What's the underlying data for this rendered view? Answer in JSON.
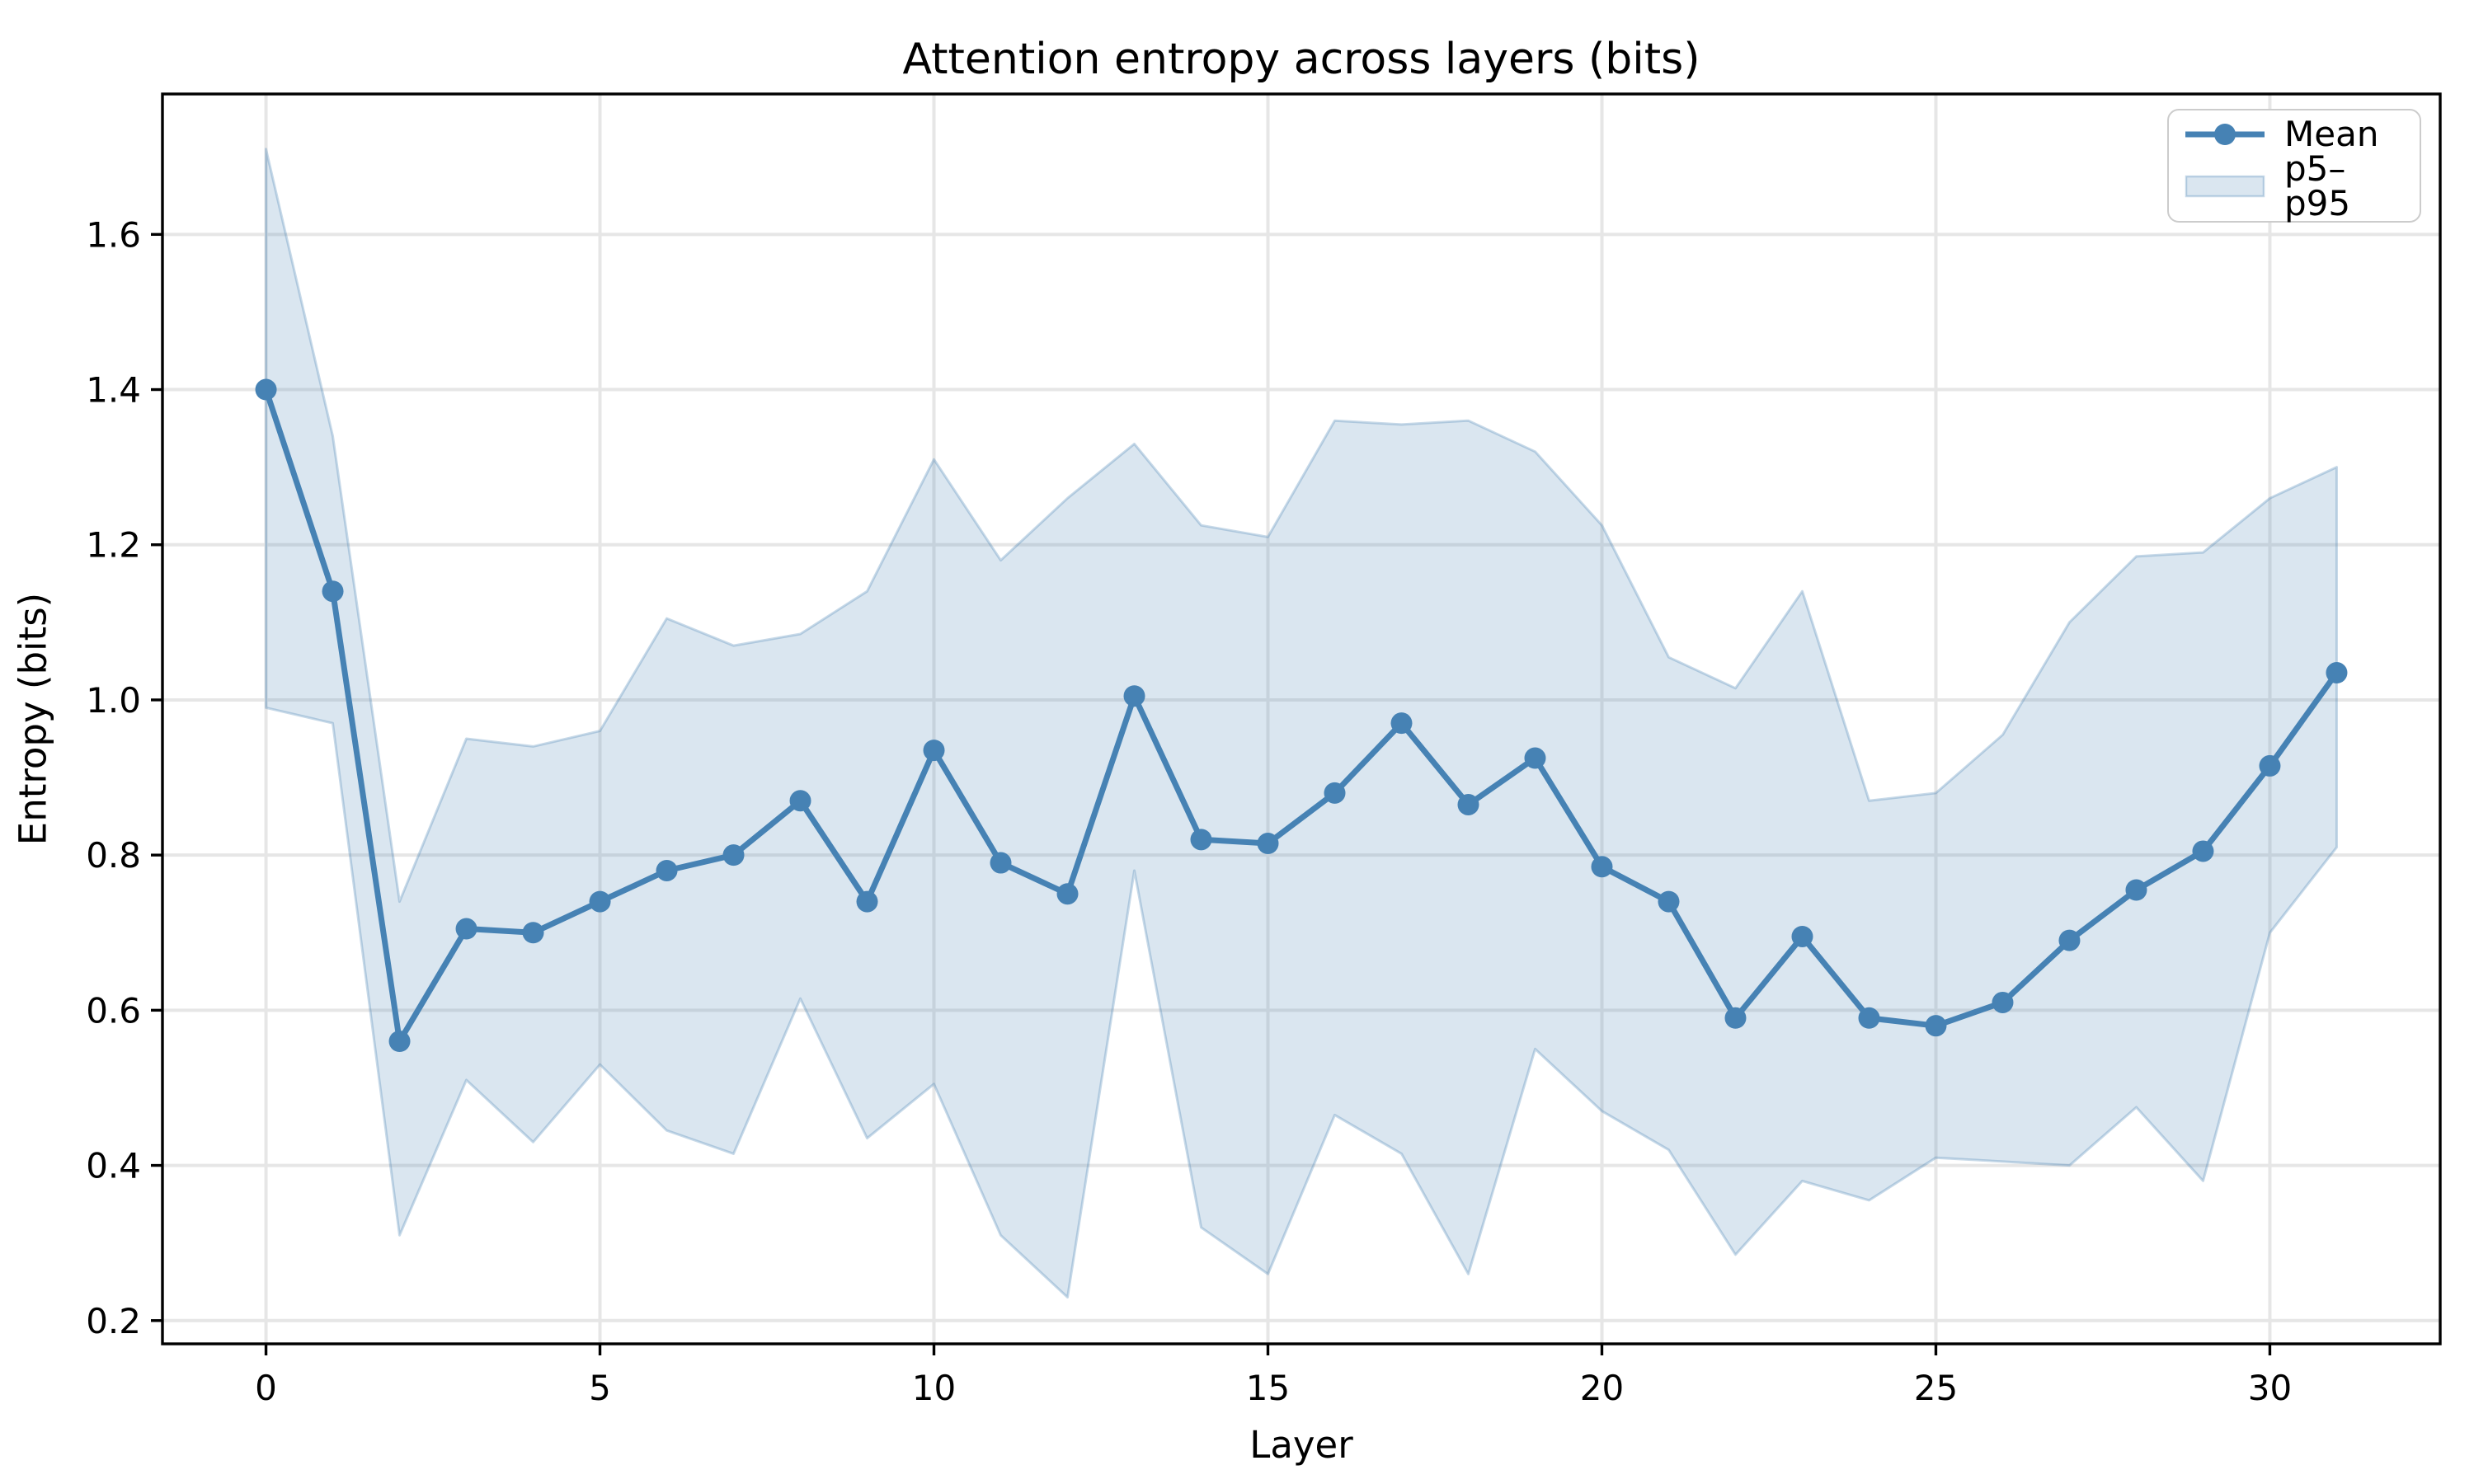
{
  "chart_data": {
    "type": "line",
    "title": "Attention entropy across layers (bits)",
    "xlabel": "Layer",
    "ylabel": "Entropy (bits)",
    "x": [
      0,
      1,
      2,
      3,
      4,
      5,
      6,
      7,
      8,
      9,
      10,
      11,
      12,
      13,
      14,
      15,
      16,
      17,
      18,
      19,
      20,
      21,
      22,
      23,
      24,
      25,
      26,
      27,
      28,
      29,
      30,
      31
    ],
    "series": [
      {
        "name": "Mean",
        "values": [
          1.4,
          1.14,
          0.56,
          0.705,
          0.7,
          0.74,
          0.78,
          0.8,
          0.87,
          0.74,
          0.935,
          0.79,
          0.75,
          1.005,
          0.82,
          0.815,
          0.88,
          0.97,
          0.865,
          0.925,
          0.785,
          0.74,
          0.59,
          0.695,
          0.59,
          0.58,
          0.61,
          0.69,
          0.755,
          0.805,
          0.915,
          1.035
        ]
      },
      {
        "name": "p5",
        "values": [
          0.99,
          0.97,
          0.31,
          0.51,
          0.43,
          0.53,
          0.445,
          0.415,
          0.615,
          0.435,
          0.505,
          0.31,
          0.23,
          0.78,
          0.32,
          0.26,
          0.465,
          0.415,
          0.26,
          0.55,
          0.47,
          0.42,
          0.285,
          0.38,
          0.355,
          0.41,
          0.405,
          0.4,
          0.475,
          0.38,
          0.7,
          0.81
        ]
      },
      {
        "name": "p95",
        "values": [
          1.71,
          1.34,
          0.74,
          0.95,
          0.94,
          0.96,
          1.105,
          1.07,
          1.085,
          1.14,
          1.31,
          1.18,
          1.26,
          1.33,
          1.225,
          1.21,
          1.36,
          1.355,
          1.36,
          1.32,
          1.225,
          1.055,
          1.015,
          1.14,
          0.87,
          0.88,
          0.955,
          1.1,
          1.185,
          1.19,
          1.26,
          1.3
        ]
      }
    ],
    "band": {
      "upper": "p95",
      "lower": "p5",
      "label": "p5–p95"
    },
    "xticks": [
      0,
      5,
      10,
      15,
      20,
      25,
      30
    ],
    "yticks": [
      0.2,
      0.4,
      0.6,
      0.8,
      1.0,
      1.2,
      1.4,
      1.6
    ],
    "xlim": [
      -1.55,
      32.55
    ],
    "ylim": [
      0.17,
      1.781
    ],
    "grid": true,
    "legend_position": "upper right",
    "colors": {
      "mean_line": "#4682b4",
      "marker": "#4682b4",
      "band_fill": "rgba(70,130,180,0.2)",
      "band_edge": "rgba(70,130,180,0.3)",
      "grid": "#e6e6e6",
      "spine": "#000000",
      "text": "#000000"
    }
  },
  "legend": {
    "items": [
      {
        "label": "Mean"
      },
      {
        "label": "p5–p95"
      }
    ]
  }
}
